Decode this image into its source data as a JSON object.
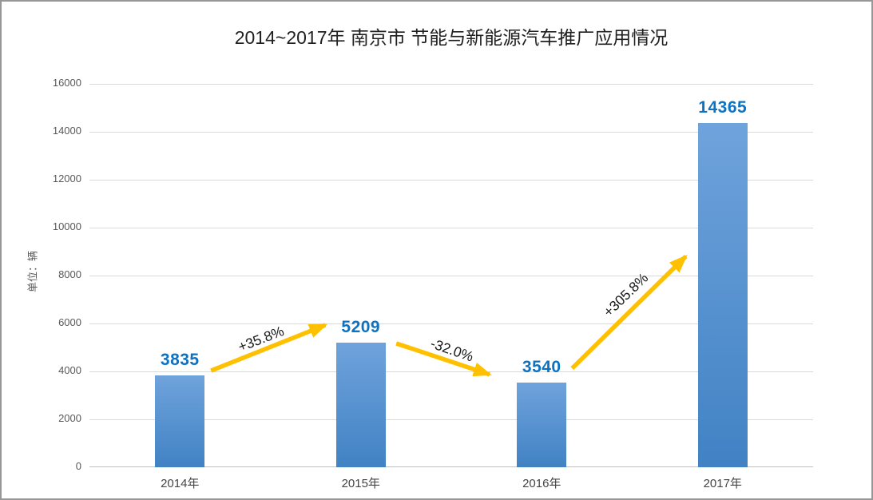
{
  "frame": {
    "background": "#ffffff",
    "border_color": "#979797"
  },
  "chart_data": {
    "type": "bar",
    "title": "2014~2017年 南京市 节能与新能源汽车推广应用情况",
    "ylabel": "单位：辆",
    "xlabel": "",
    "categories": [
      "2014年",
      "2015年",
      "2016年",
      "2017年"
    ],
    "values": [
      3835,
      5209,
      3540,
      14365
    ],
    "value_labels": [
      "3835",
      "5209",
      "3540",
      "14365"
    ],
    "ylim": [
      0,
      16000
    ],
    "ytick_step": 2000,
    "yticks": [
      0,
      2000,
      4000,
      6000,
      8000,
      10000,
      12000,
      14000,
      16000
    ],
    "grid": true,
    "legend_position": "none",
    "colors": {
      "bar_gradient_top": "#6fa3dc",
      "bar_gradient_bottom": "#4182c4",
      "value_label": "#0d72c2",
      "arrow": "#ffc000",
      "annotation_text": "#1a1a1a",
      "gridline": "#d9d9d9",
      "axis_line": "#bfbfbf",
      "tick_label": "#595959",
      "x_label": "#444444",
      "title": "#1f1f1f"
    },
    "annotations": [
      {
        "label": "+35.8%",
        "from": [
          0.168,
          0.748
        ],
        "to": [
          0.326,
          0.629
        ],
        "label_pos": [
          0.237,
          0.665
        ],
        "rotation": -21
      },
      {
        "label": "-32.0%",
        "from": [
          0.424,
          0.677
        ],
        "to": [
          0.553,
          0.758
        ],
        "label_pos": [
          0.501,
          0.694
        ],
        "rotation": 19
      },
      {
        "label": "+305.8%",
        "from": [
          0.667,
          0.742
        ],
        "to": [
          0.824,
          0.45
        ],
        "label_pos": [
          0.741,
          0.55
        ],
        "rotation": -44
      }
    ]
  }
}
